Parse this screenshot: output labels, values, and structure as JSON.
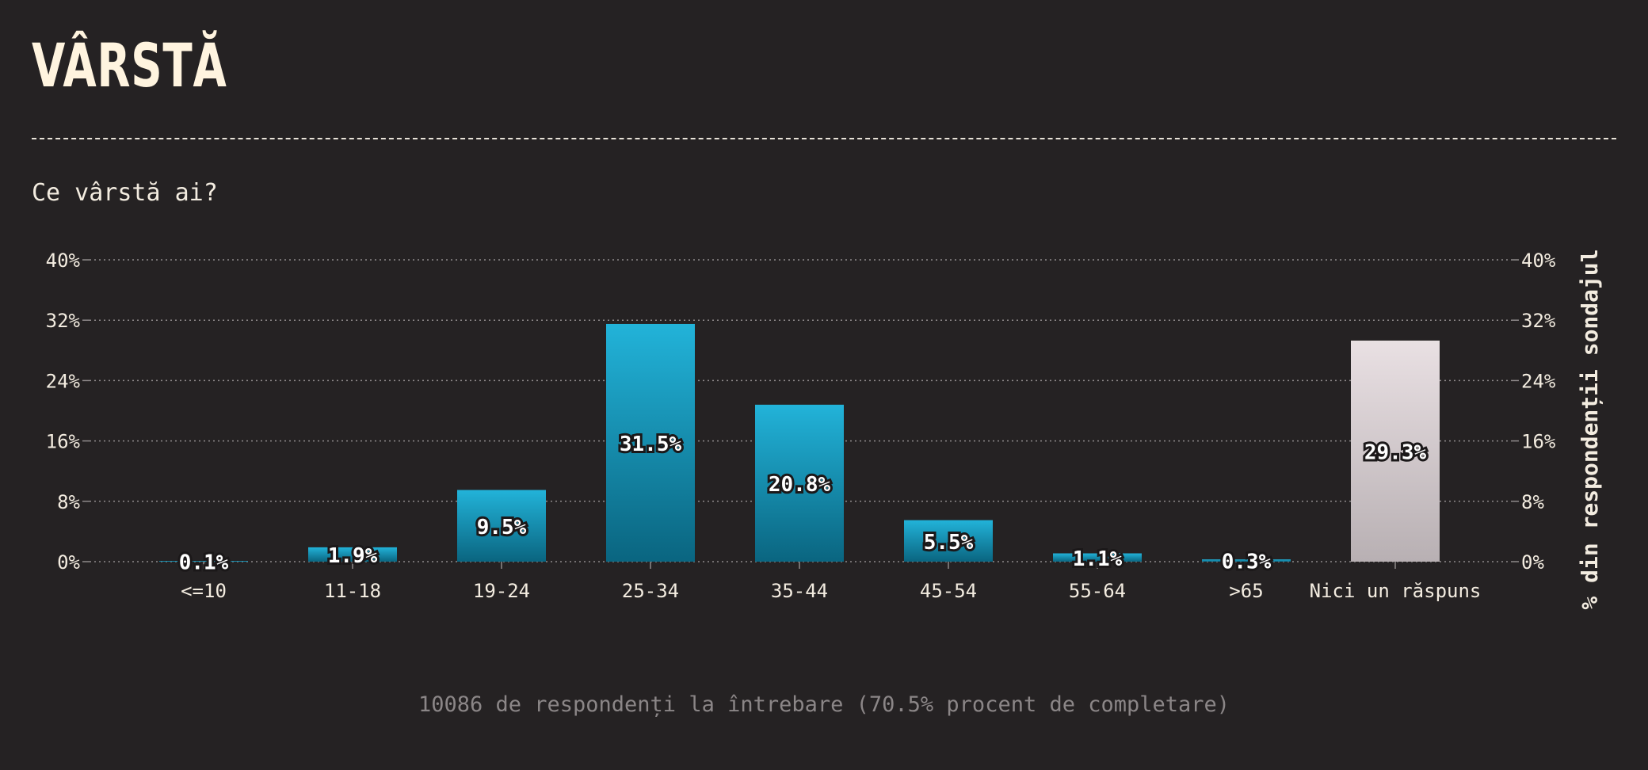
{
  "header": {
    "title": "VÂRSTĂ"
  },
  "question": "Ce vârstă ai?",
  "footer": "10086 de respondenți la întrebare (70.5% procent de completare)",
  "chart_data": {
    "type": "bar",
    "categories": [
      "<=10",
      "11-18",
      "19-24",
      "25-34",
      "35-44",
      "45-54",
      "55-64",
      ">65",
      "Nici un răspuns"
    ],
    "values": [
      0.1,
      1.9,
      9.5,
      31.5,
      20.8,
      5.5,
      1.1,
      0.3,
      29.3
    ],
    "value_labels": [
      "0.1%",
      "1.9%",
      "9.5%",
      "31.5%",
      "20.8%",
      "5.5%",
      "1.1%",
      "0.3%",
      "29.3%"
    ],
    "y_ticks": [
      "0%",
      "8%",
      "16%",
      "24%",
      "32%",
      "40%"
    ],
    "ylim": [
      0,
      40
    ],
    "ylabel": "% din respondenții sondajul",
    "xlabel": "",
    "grid": true,
    "colors": {
      "bar_top": "#22b3d9",
      "bar_bottom": "#0a6580",
      "no_answer_top": "#e9e0e3",
      "no_answer_bottom": "#b8b0b3",
      "grid": "#8f8a8b",
      "background": "#252223"
    }
  }
}
